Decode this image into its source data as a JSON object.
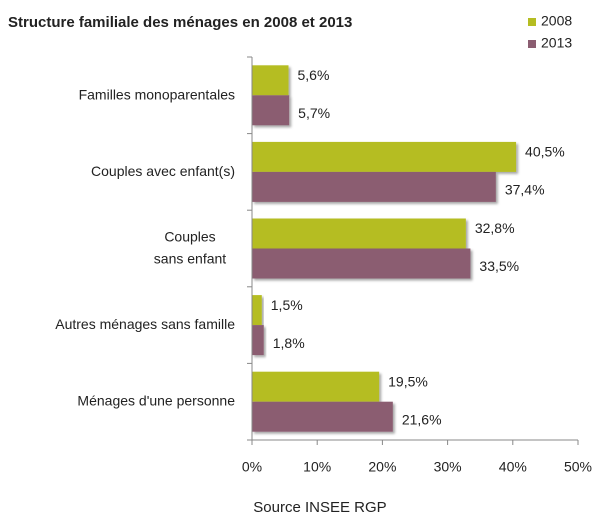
{
  "chart_data": {
    "type": "bar",
    "orientation": "horizontal",
    "title": "Structure familiale des ménages en 2008 et 2013",
    "categories": [
      "Familles monoparentales",
      "Couples avec enfant(s)",
      "Couples\nsans enfant",
      "Autres ménages sans famille",
      "Ménages d'une personne"
    ],
    "series": [
      {
        "name": "2008",
        "color": "#b5bd22",
        "values": [
          5.6,
          40.5,
          32.8,
          1.5,
          19.5
        ],
        "value_labels": [
          "5,6%",
          "40,5%",
          "32,8%",
          "1,5%",
          "19,5%"
        ]
      },
      {
        "name": "2013",
        "color": "#8b5d71",
        "values": [
          5.7,
          37.4,
          33.5,
          1.8,
          21.6
        ],
        "value_labels": [
          "5,7%",
          "37,4%",
          "33,5%",
          "1,8%",
          "21,6%"
        ]
      }
    ],
    "xlim": [
      0,
      50
    ],
    "xticks": [
      {
        "value": 0,
        "label": "0%"
      },
      {
        "value": 10,
        "label": "10%"
      },
      {
        "value": 20,
        "label": "20%"
      },
      {
        "value": 30,
        "label": "30%"
      },
      {
        "value": 40,
        "label": "40%"
      },
      {
        "value": 50,
        "label": "50%"
      }
    ],
    "legend": "top-right",
    "source": "Source INSEE RGP"
  }
}
